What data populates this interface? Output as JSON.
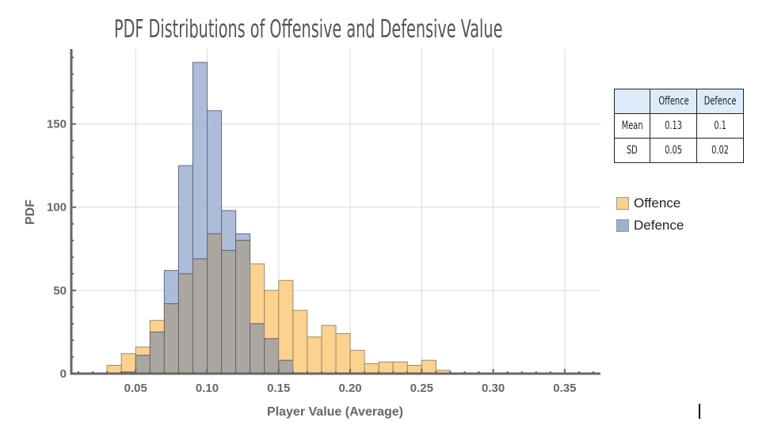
{
  "chart_data": {
    "type": "bar",
    "subtype": "overlapping-histogram",
    "title": "PDF Distributions of Offensive and Defensive Value",
    "xlabel": "Player Value (Average)",
    "ylabel": "PDF",
    "xlim": [
      0.005,
      0.375
    ],
    "ylim": [
      0,
      195
    ],
    "x_ticks": [
      "0.05",
      "0.10",
      "0.15",
      "0.20",
      "0.25",
      "0.30",
      "0.35"
    ],
    "x_tick_values": [
      0.05,
      0.1,
      0.15,
      0.2,
      0.25,
      0.3,
      0.35
    ],
    "y_ticks": [
      "0",
      "50",
      "100",
      "150"
    ],
    "y_tick_values": [
      0,
      50,
      100,
      150
    ],
    "grid": true,
    "bin_width": 0.01,
    "bin_starts": [
      0.03,
      0.04,
      0.05,
      0.06,
      0.07,
      0.08,
      0.09,
      0.1,
      0.11,
      0.12,
      0.13,
      0.14,
      0.15,
      0.16,
      0.17,
      0.18,
      0.19,
      0.2,
      0.21,
      0.22,
      0.23,
      0.24,
      0.25,
      0.26
    ],
    "series": [
      {
        "name": "Offence",
        "color": "#fdd089",
        "values": [
          5,
          12,
          16,
          32,
          42,
          60,
          69,
          84,
          74,
          80,
          66,
          50,
          56,
          38,
          22,
          29,
          24,
          14,
          6,
          7,
          7,
          5,
          8,
          2
        ]
      },
      {
        "name": "Defence",
        "color": "#9fb1d2",
        "values": [
          0,
          1,
          11,
          25,
          62,
          125,
          187,
          158,
          98,
          84,
          30,
          21,
          8,
          0,
          0,
          0,
          0,
          0,
          0,
          0,
          0,
          0,
          0,
          0
        ]
      }
    ],
    "overlap_color": "#aba79f",
    "legend": {
      "placement": "right",
      "entries": [
        "Offence",
        "Defence"
      ]
    }
  },
  "stats_table": {
    "headers": [
      "",
      "Offence",
      "Defence"
    ],
    "rows": [
      [
        "Mean",
        "0.13",
        "0.1"
      ],
      [
        "SD",
        "0.05",
        "0.02"
      ]
    ]
  }
}
